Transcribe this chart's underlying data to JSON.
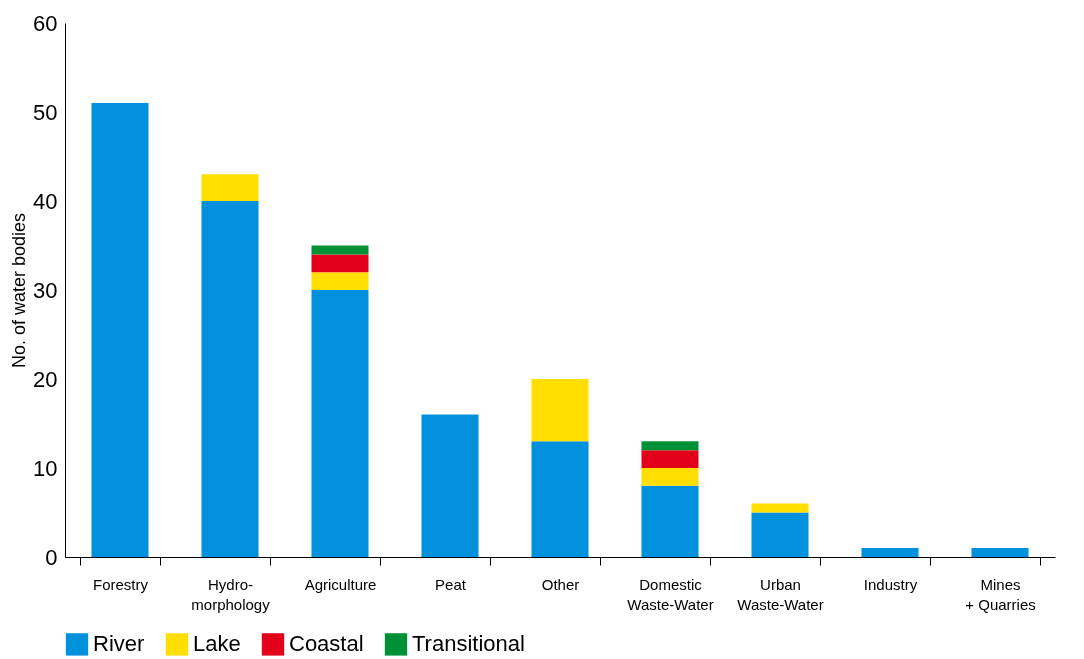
{
  "chart_data": {
    "type": "bar",
    "stacked": true,
    "ylabel": "No. of water bodies",
    "categories": [
      "Forestry",
      "Hydro-\nmorphology",
      "Agriculture",
      "Peat",
      "Other",
      "Domestic\nWaste-Water",
      "Urban\nWaste-Water",
      "Industry",
      "Mines\n+ Quarries"
    ],
    "series": [
      {
        "name": "River",
        "color": "#0090dc",
        "values": [
          51,
          40,
          30,
          16,
          13,
          8,
          5,
          1,
          1
        ]
      },
      {
        "name": "Lake",
        "color": "#ffde00",
        "values": [
          null,
          3,
          2,
          null,
          7,
          2,
          1,
          null,
          null
        ]
      },
      {
        "name": "Coastal",
        "color": "#e2001a",
        "values": [
          null,
          null,
          2,
          null,
          null,
          2,
          null,
          null,
          null
        ]
      },
      {
        "name": "Transitional",
        "color": "#009036",
        "values": [
          null,
          null,
          1,
          null,
          null,
          1,
          null,
          null,
          null
        ]
      }
    ],
    "ylim": [
      0,
      60
    ],
    "yticks": [
      0,
      10,
      20,
      30,
      40,
      50,
      60
    ],
    "grid": false,
    "legend": "bottom"
  }
}
